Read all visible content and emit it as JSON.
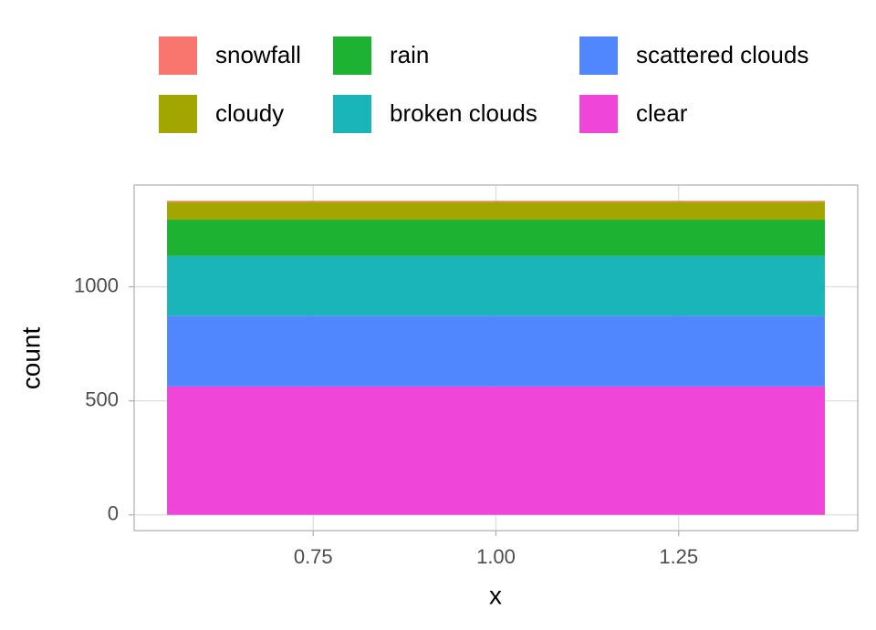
{
  "chart_data": {
    "type": "stacked_bar",
    "x": [
      1
    ],
    "series": [
      {
        "name": "snowfall",
        "color": "#f8766d",
        "values": [
          4
        ]
      },
      {
        "name": "cloudy",
        "color": "#a3a500",
        "values": [
          79
        ]
      },
      {
        "name": "rain",
        "color": "#1db232",
        "values": [
          159
        ]
      },
      {
        "name": "broken clouds",
        "color": "#19b5b9",
        "values": [
          262
        ]
      },
      {
        "name": "scattered clouds",
        "color": "#5087ff",
        "values": [
          310
        ]
      },
      {
        "name": "clear",
        "color": "#ef45d9",
        "values": [
          563
        ]
      }
    ],
    "xlabel": "x",
    "ylabel": "count",
    "xlim": [
      0.505,
      1.495
    ],
    "xticks": [
      0.75,
      {
        "value": 1,
        "label": "1.00"
      },
      1.25
    ],
    "ylim": [
      -69,
      1446
    ],
    "yticks": [
      0,
      500,
      1000
    ],
    "grid": true,
    "legend": "top"
  }
}
